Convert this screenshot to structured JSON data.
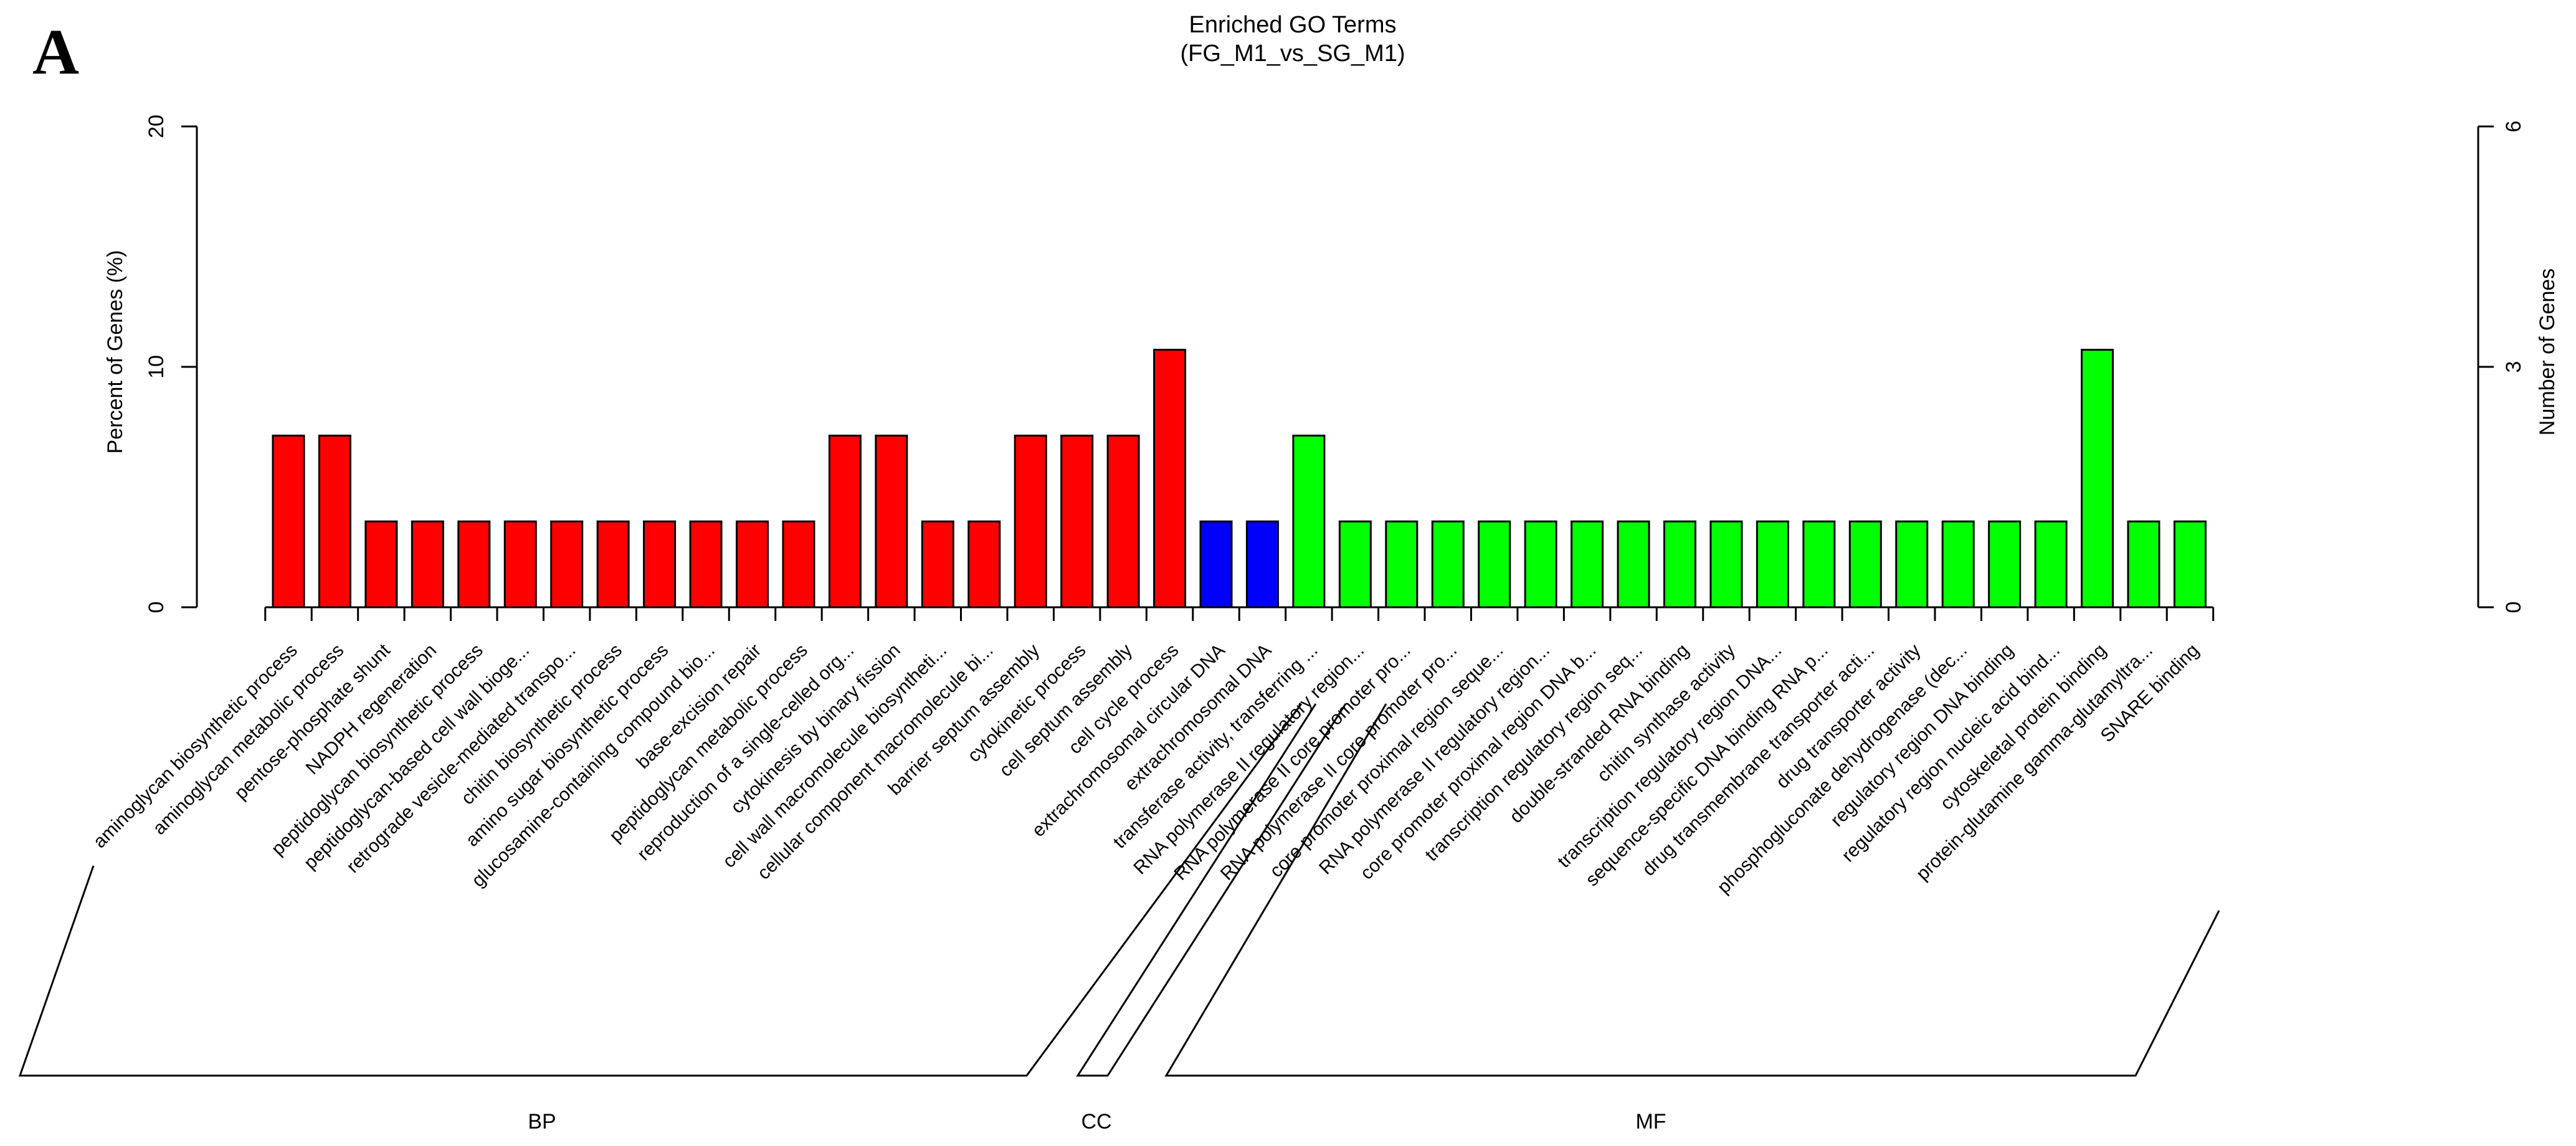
{
  "chart_data": {
    "type": "bar",
    "panel_label": "A",
    "title": "Enriched GO Terms",
    "subtitle": "(FG_M1_vs_SG_M1)",
    "y_left": {
      "label": "Percent of Genes (%)",
      "ticks": [
        0,
        10,
        20
      ],
      "range": [
        0,
        20
      ]
    },
    "y_right": {
      "label": "Number of Genes",
      "ticks": [
        0,
        3,
        6
      ],
      "range": [
        0,
        6
      ]
    },
    "legend_position": "none",
    "grid": false,
    "groups": [
      {
        "id": "BP",
        "label": "BP",
        "color": "#FF0000"
      },
      {
        "id": "CC",
        "label": "CC",
        "color": "#0000FF"
      },
      {
        "id": "MF",
        "label": "MF",
        "color": "#00FF00"
      }
    ],
    "bars": [
      {
        "label": "aminoglycan biosynthetic process",
        "group": "BP",
        "genes": 2,
        "percent": 7.14
      },
      {
        "label": "aminoglycan metabolic process",
        "group": "BP",
        "genes": 2,
        "percent": 7.14
      },
      {
        "label": "pentose-phosphate shunt",
        "group": "BP",
        "genes": 1,
        "percent": 3.57
      },
      {
        "label": "NADPH regeneration",
        "group": "BP",
        "genes": 1,
        "percent": 3.57
      },
      {
        "label": "peptidoglycan biosynthetic process",
        "group": "BP",
        "genes": 1,
        "percent": 3.57
      },
      {
        "label": "peptidoglycan-based cell wall bioge...",
        "group": "BP",
        "genes": 1,
        "percent": 3.57
      },
      {
        "label": "retrograde vesicle-mediated transpo...",
        "group": "BP",
        "genes": 1,
        "percent": 3.57
      },
      {
        "label": "chitin biosynthetic process",
        "group": "BP",
        "genes": 1,
        "percent": 3.57
      },
      {
        "label": "amino sugar biosynthetic process",
        "group": "BP",
        "genes": 1,
        "percent": 3.57
      },
      {
        "label": "glucosamine-containing compound bio...",
        "group": "BP",
        "genes": 1,
        "percent": 3.57
      },
      {
        "label": "base-excision repair",
        "group": "BP",
        "genes": 1,
        "percent": 3.57
      },
      {
        "label": "peptidoglycan metabolic process",
        "group": "BP",
        "genes": 1,
        "percent": 3.57
      },
      {
        "label": "reproduction of a single-celled org...",
        "group": "BP",
        "genes": 2,
        "percent": 7.14
      },
      {
        "label": "cytokinesis by binary fission",
        "group": "BP",
        "genes": 2,
        "percent": 7.14
      },
      {
        "label": "cell wall macromolecule biosyntheti...",
        "group": "BP",
        "genes": 1,
        "percent": 3.57
      },
      {
        "label": "cellular component macromolecule bi...",
        "group": "BP",
        "genes": 1,
        "percent": 3.57
      },
      {
        "label": "barrier septum assembly",
        "group": "BP",
        "genes": 2,
        "percent": 7.14
      },
      {
        "label": "cytokinetic process",
        "group": "BP",
        "genes": 2,
        "percent": 7.14
      },
      {
        "label": "cell septum assembly",
        "group": "BP",
        "genes": 2,
        "percent": 7.14
      },
      {
        "label": "cell cycle process",
        "group": "BP",
        "genes": 3,
        "percent": 10.71
      },
      {
        "label": "extrachromosomal circular DNA",
        "group": "CC",
        "genes": 1,
        "percent": 3.57
      },
      {
        "label": "extrachromosomal DNA",
        "group": "CC",
        "genes": 1,
        "percent": 3.57
      },
      {
        "label": "transferase activity, transferring ...",
        "group": "MF",
        "genes": 2,
        "percent": 7.14
      },
      {
        "label": "RNA polymerase II regulatory region...",
        "group": "MF",
        "genes": 1,
        "percent": 3.57
      },
      {
        "label": "RNA polymerase II core promoter pro...",
        "group": "MF",
        "genes": 1,
        "percent": 3.57
      },
      {
        "label": "RNA polymerase II core promoter pro...",
        "group": "MF",
        "genes": 1,
        "percent": 3.57
      },
      {
        "label": "core promoter proximal region seque...",
        "group": "MF",
        "genes": 1,
        "percent": 3.57
      },
      {
        "label": "RNA polymerase II regulatory region...",
        "group": "MF",
        "genes": 1,
        "percent": 3.57
      },
      {
        "label": "core promoter proximal region DNA b...",
        "group": "MF",
        "genes": 1,
        "percent": 3.57
      },
      {
        "label": "transcription regulatory region seq...",
        "group": "MF",
        "genes": 1,
        "percent": 3.57
      },
      {
        "label": "double-stranded RNA binding",
        "group": "MF",
        "genes": 1,
        "percent": 3.57
      },
      {
        "label": "chitin synthase activity",
        "group": "MF",
        "genes": 1,
        "percent": 3.57
      },
      {
        "label": "transcription regulatory region DNA...",
        "group": "MF",
        "genes": 1,
        "percent": 3.57
      },
      {
        "label": "sequence-specific DNA binding RNA p...",
        "group": "MF",
        "genes": 1,
        "percent": 3.57
      },
      {
        "label": "drug transmembrane transporter acti...",
        "group": "MF",
        "genes": 1,
        "percent": 3.57
      },
      {
        "label": "drug transporter activity",
        "group": "MF",
        "genes": 1,
        "percent": 3.57
      },
      {
        "label": "phosphogluconate dehydrogenase (dec...",
        "group": "MF",
        "genes": 1,
        "percent": 3.57
      },
      {
        "label": "regulatory region DNA binding",
        "group": "MF",
        "genes": 1,
        "percent": 3.57
      },
      {
        "label": "regulatory region nucleic acid bind...",
        "group": "MF",
        "genes": 1,
        "percent": 3.57
      },
      {
        "label": "cytoskeletal protein binding",
        "group": "MF",
        "genes": 3,
        "percent": 10.71
      },
      {
        "label": "protein-glutamine gamma-glutamyltra...",
        "group": "MF",
        "genes": 1,
        "percent": 3.57
      },
      {
        "label": "SNARE binding",
        "group": "MF",
        "genes": 1,
        "percent": 3.57
      }
    ]
  }
}
